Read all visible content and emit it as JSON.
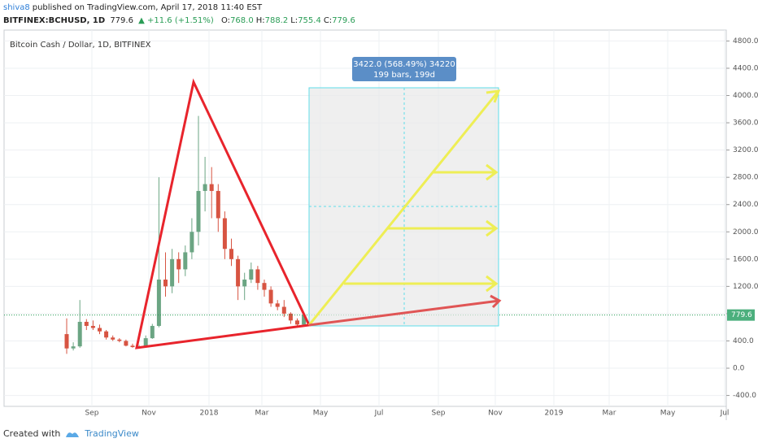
{
  "header": {
    "author": "shiva8",
    "published": "published on TradingView.com, April 17, 2018 11:40 EST",
    "symbol": "BITFINEX:BCHUSD, 1D",
    "last": "779.6",
    "change": "+11.6 (+1.51%)",
    "ohlc": [
      {
        "label": "O:",
        "value": "768.0"
      },
      {
        "label": "H:",
        "value": "788.2"
      },
      {
        "label": "L:",
        "value": "755.4"
      },
      {
        "label": "C:",
        "value": "779.6"
      }
    ]
  },
  "chart_data": {
    "type": "candlestick",
    "title": "Bitcoin Cash / Dollar, 1D, BITFINEX",
    "up_color": "#6ba583",
    "down_color": "#d75442",
    "open": [
      500,
      290,
      320,
      680,
      620,
      590,
      540,
      450,
      420,
      400,
      330,
      310,
      320,
      440,
      620,
      1300,
      1200,
      1600,
      1450,
      1700,
      2000,
      2600,
      2700,
      2600,
      2200,
      1750,
      1600,
      1200,
      1300,
      1450,
      1250,
      1150,
      950,
      900,
      800,
      700,
      640
    ],
    "high": [
      730,
      380,
      1000,
      720,
      700,
      640,
      560,
      480,
      440,
      420,
      360,
      340,
      480,
      650,
      2800,
      1700,
      1750,
      1700,
      1800,
      2200,
      3700,
      3100,
      2950,
      2700,
      2300,
      1900,
      1650,
      1400,
      1550,
      1500,
      1300,
      1200,
      1000,
      1000,
      820,
      730,
      790
    ],
    "low": [
      210,
      260,
      300,
      560,
      560,
      500,
      420,
      400,
      380,
      320,
      300,
      290,
      300,
      430,
      600,
      1050,
      1100,
      1250,
      1350,
      1600,
      1800,
      2300,
      2200,
      2000,
      1600,
      1500,
      1000,
      1000,
      1250,
      1150,
      1050,
      900,
      850,
      750,
      650,
      600,
      620
    ],
    "close": [
      290,
      320,
      680,
      620,
      590,
      540,
      450,
      420,
      400,
      330,
      310,
      320,
      440,
      620,
      1300,
      1200,
      1600,
      1450,
      1700,
      2000,
      2600,
      2700,
      2600,
      2200,
      1750,
      1600,
      1200,
      1300,
      1450,
      1250,
      1150,
      950,
      900,
      800,
      700,
      640,
      780
    ],
    "last_price": {
      "value": 779.6,
      "label": "779.6"
    },
    "ylim": [
      -560,
      4960
    ],
    "yticks": [
      {
        "value": 4800,
        "label": "4800.0"
      },
      {
        "value": 4400,
        "label": "4400.0"
      },
      {
        "value": 4000,
        "label": "4000.0"
      },
      {
        "value": 3600,
        "label": "3600.0"
      },
      {
        "value": 3200,
        "label": "3200.0"
      },
      {
        "value": 2800,
        "label": "2800.0"
      },
      {
        "value": 2400,
        "label": "2400.0"
      },
      {
        "value": 2000,
        "label": "2000.0"
      },
      {
        "value": 1600,
        "label": "1600.0"
      },
      {
        "value": 1200,
        "label": "1200.0"
      },
      {
        "value": 800,
        "label": "800.0"
      },
      {
        "value": 400,
        "label": "400.0"
      },
      {
        "value": 0,
        "label": "0.0"
      },
      {
        "value": -400,
        "label": "-400.0"
      }
    ],
    "xtick_labels": [
      "Sep",
      "Nov",
      "2018",
      "Mar",
      "May",
      "Jul",
      "Sep",
      "Nov",
      "2019",
      "Mar",
      "May",
      "Jul"
    ],
    "annotations": {
      "projection": "3422.0 (568.49%) 34220",
      "bars": "199 bars, 199d"
    }
  },
  "footer": {
    "created": "Created with",
    "brand": "TradingView"
  }
}
